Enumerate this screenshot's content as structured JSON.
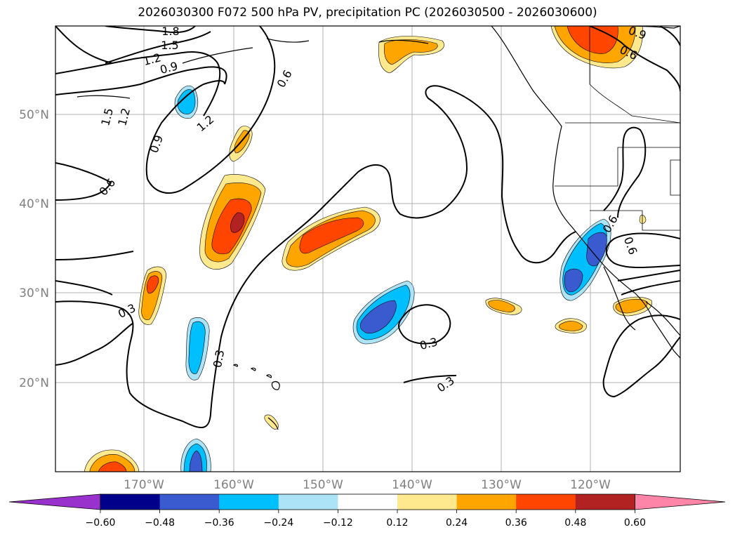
{
  "title": "2026030300 F072 500 hPa PV, precipitation PC (2026030500 - 2026030600)",
  "lat_labels": [
    "50°N",
    "40°N",
    "30°N",
    "20°N"
  ],
  "lon_labels": [
    "170°W",
    "160°W",
    "150°W",
    "140°W",
    "130°W",
    "120°W"
  ],
  "contour_labels": [
    "1.8",
    "1.5",
    "1.2",
    "0.9",
    "0.6",
    "1.5",
    "1.2",
    "1.2",
    "0.9",
    "0.6",
    "0.3",
    "0.3",
    "0.3",
    "0.3",
    "0.6",
    "0.6",
    "0.9",
    "0.6"
  ],
  "colorbar": {
    "ticks": [
      "−0.60",
      "−0.48",
      "−0.36",
      "−0.24",
      "−0.12",
      "0.12",
      "0.24",
      "0.36",
      "0.48",
      "0.60"
    ],
    "colors": [
      "#9932CC",
      "#00008B",
      "#3A5BCF",
      "#00BFFF",
      "#ADE3F7",
      "#FFFFFF",
      "#FFE98F",
      "#FFA500",
      "#FF4500",
      "#B22222",
      "#FF85A8"
    ]
  },
  "fill_colors": {
    "light_yellow": "#FFE98F",
    "orange": "#FFA500",
    "red_orange": "#FF4500",
    "dark_red": "#B22222",
    "light_blue": "#ADE3F7",
    "sky_blue": "#00BFFF",
    "royal_blue": "#3A5BCF"
  }
}
